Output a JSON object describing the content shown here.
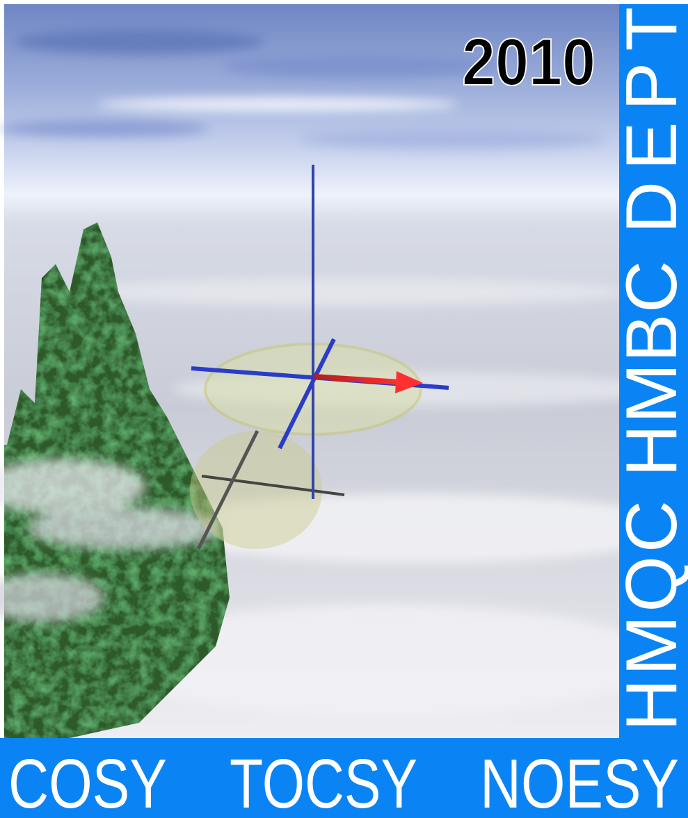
{
  "year": "2010",
  "side_banner": {
    "words": [
      "HMQC",
      "HMBC",
      "DEPT"
    ]
  },
  "bottom_banner": {
    "words": [
      "COSY",
      "TOCSY",
      "NOESY"
    ]
  }
}
